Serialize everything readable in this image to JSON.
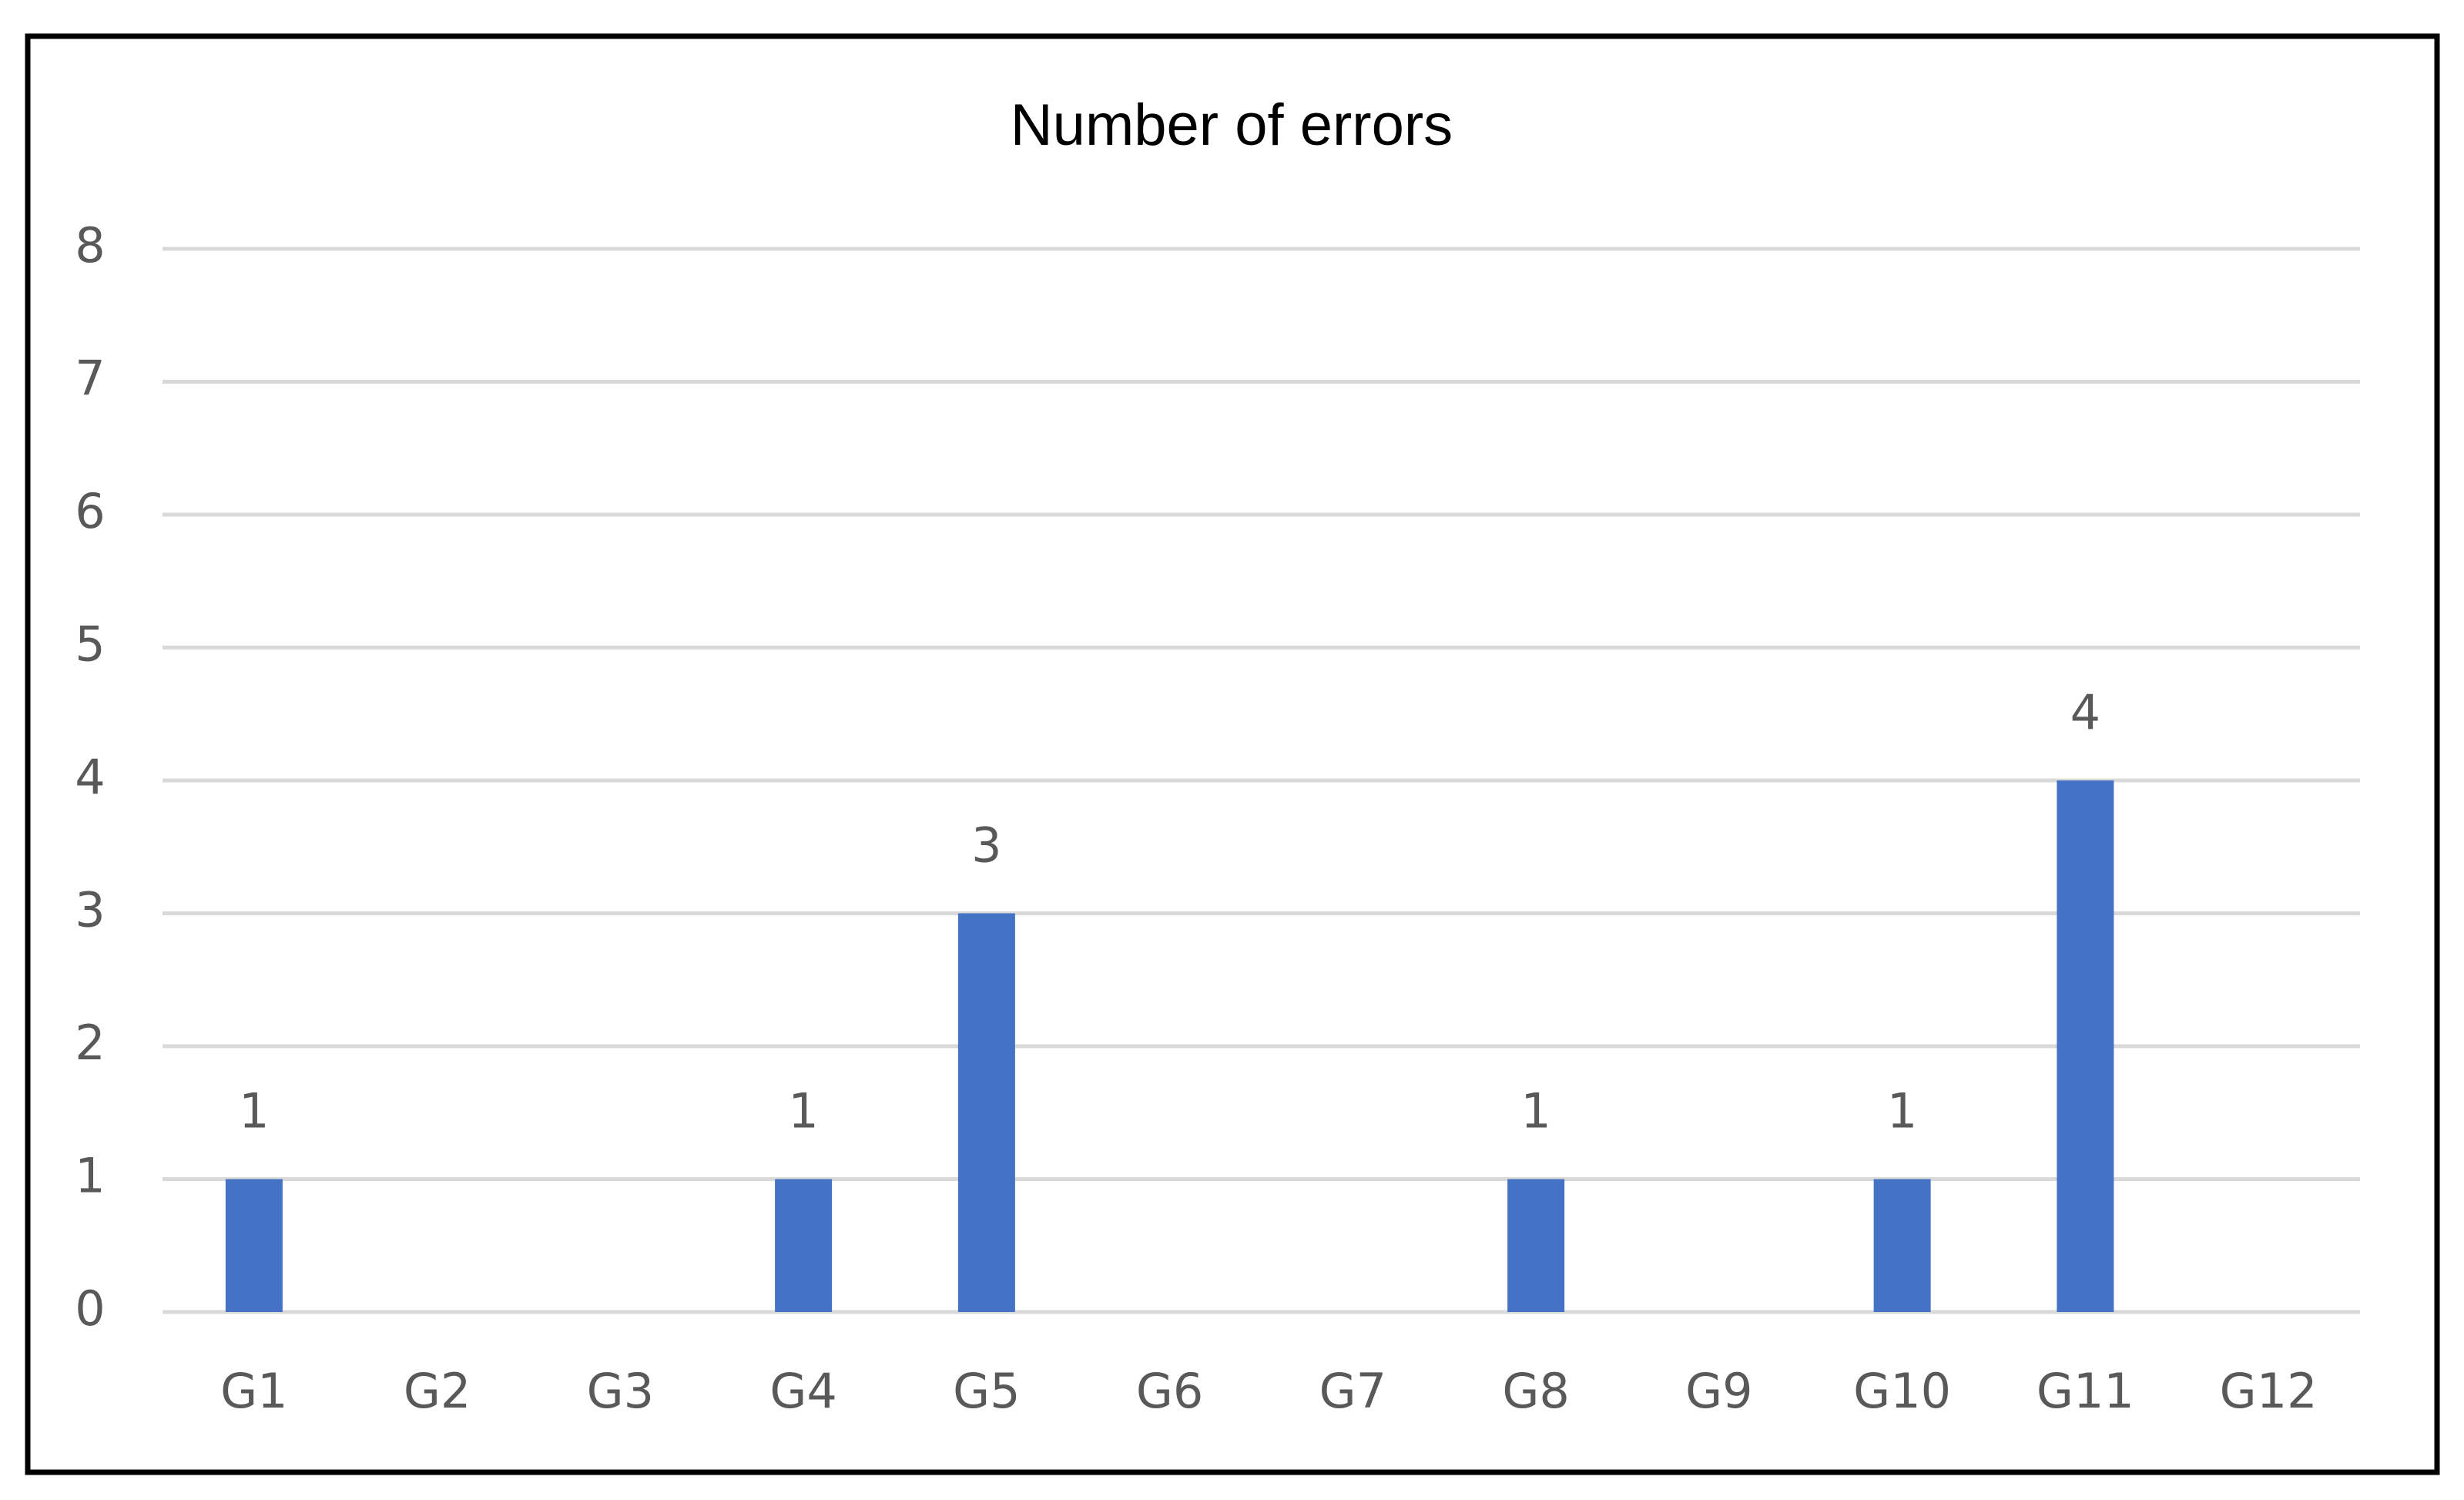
{
  "chart_data": {
    "type": "bar",
    "title": "Number of errors",
    "categories": [
      "G1",
      "G2",
      "G3",
      "G4",
      "G5",
      "G6",
      "G7",
      "G8",
      "G9",
      "G10",
      "G11",
      "G12"
    ],
    "values": [
      1,
      0,
      0,
      1,
      3,
      0,
      0,
      1,
      0,
      1,
      4,
      0
    ],
    "color": "#4472c4",
    "ylim": [
      0,
      8
    ],
    "yticks": [
      0,
      1,
      2,
      3,
      4,
      5,
      6,
      7,
      8
    ],
    "grid": true
  }
}
